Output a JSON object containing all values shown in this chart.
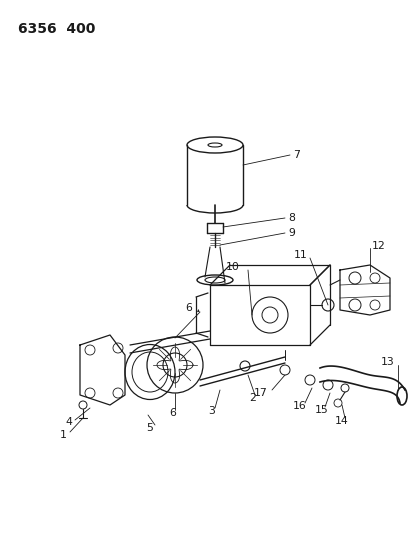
{
  "title": "6356  400",
  "bg_color": "#ffffff",
  "lc": "#1a1a1a",
  "figsize": [
    4.08,
    5.33
  ],
  "dpi": 100,
  "xlim": [
    0,
    408
  ],
  "ylim": [
    0,
    533
  ]
}
